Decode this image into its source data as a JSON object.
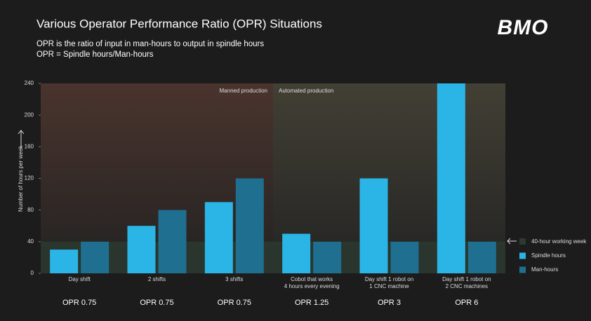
{
  "chart_data": {
    "type": "bar",
    "title": "Various Operator Performance Ratio (OPR) Situations",
    "subtitle": [
      "OPR is the ratio of input in man-hours to output in spindle hours",
      "OPR = Spindle hours/Man-hours"
    ],
    "logo": "BMO",
    "y_label": "Number of hours per week",
    "categories": [
      [
        "Day shift"
      ],
      [
        "2 shifts"
      ],
      [
        "3 shifts"
      ],
      [
        "Cobot that works",
        "4 hours every evening"
      ],
      [
        "Day shift 1 robot on",
        "1 CNC machine"
      ],
      [
        "Day shift 1 robot on",
        "2 CNC machines"
      ]
    ],
    "opr_labels": [
      "OPR 0.75",
      "OPR 0.75",
      "OPR 0.75",
      "OPR 1.25",
      "OPR 3",
      "OPR 6"
    ],
    "annotations": [
      "Manned production",
      "Automated production"
    ],
    "series": [
      {
        "name": "Spindle hours",
        "color": "#2bb5e6",
        "values": [
          30,
          60,
          90,
          50,
          120,
          240
        ]
      },
      {
        "name": "Man-hours",
        "color": "#1f6f90",
        "values": [
          40,
          80,
          120,
          40,
          40,
          40
        ]
      }
    ],
    "reference": {
      "label": "40-hour working week",
      "value": 40,
      "color": "#2c3a2f"
    },
    "ylim": [
      0,
      240
    ],
    "yticks": [
      0,
      40,
      80,
      120,
      160,
      200,
      240
    ]
  }
}
